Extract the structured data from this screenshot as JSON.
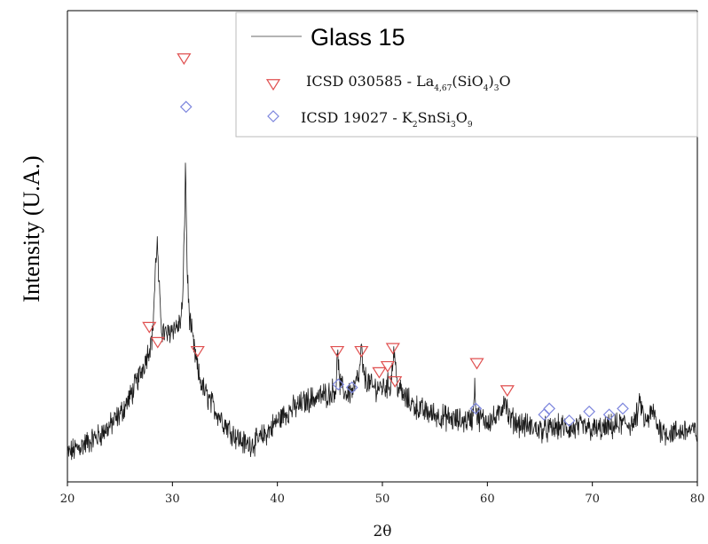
{
  "chart_data": {
    "type": "line",
    "title": "",
    "xlabel": "2θ",
    "ylabel": "Intensity (U.A.)",
    "xlim": [
      20,
      80
    ],
    "xticks": [
      20,
      30,
      40,
      50,
      60,
      70,
      80
    ],
    "yticks": [],
    "grid": false,
    "legend_position": "top-right",
    "colors": {
      "pattern": "#1a1a1a",
      "la_marker": "#e05050",
      "k_marker": "#7d86dd"
    },
    "series": [
      {
        "name": "Glass 15",
        "type": "line",
        "y_scale": "arbitrary (0 = baseline at bottom, 1 = strongest peak)",
        "points": [
          [
            20.0,
            0.04
          ],
          [
            21.0,
            0.06
          ],
          [
            22.0,
            0.08
          ],
          [
            23.0,
            0.1
          ],
          [
            24.0,
            0.13
          ],
          [
            25.0,
            0.17
          ],
          [
            26.0,
            0.23
          ],
          [
            27.0,
            0.31
          ],
          [
            27.7,
            0.38
          ],
          [
            28.1,
            0.43
          ],
          [
            28.4,
            0.66
          ],
          [
            28.55,
            0.75
          ],
          [
            28.7,
            0.6
          ],
          [
            29.0,
            0.45
          ],
          [
            29.5,
            0.43
          ],
          [
            30.0,
            0.46
          ],
          [
            30.5,
            0.46
          ],
          [
            30.8,
            0.48
          ],
          [
            31.0,
            0.56
          ],
          [
            31.1,
            0.72
          ],
          [
            31.25,
            1.0
          ],
          [
            31.4,
            0.66
          ],
          [
            31.6,
            0.5
          ],
          [
            32.0,
            0.4
          ],
          [
            32.5,
            0.3
          ],
          [
            33.0,
            0.25
          ],
          [
            34.0,
            0.19
          ],
          [
            35.0,
            0.14
          ],
          [
            36.0,
            0.1
          ],
          [
            37.0,
            0.07
          ],
          [
            38.0,
            0.08
          ],
          [
            39.0,
            0.11
          ],
          [
            40.0,
            0.15
          ],
          [
            41.0,
            0.18
          ],
          [
            42.0,
            0.2
          ],
          [
            43.0,
            0.22
          ],
          [
            44.0,
            0.23
          ],
          [
            45.0,
            0.24
          ],
          [
            45.6,
            0.26
          ],
          [
            45.75,
            0.4
          ],
          [
            45.9,
            0.27
          ],
          [
            46.5,
            0.24
          ],
          [
            47.2,
            0.25
          ],
          [
            47.8,
            0.3
          ],
          [
            48.0,
            0.39
          ],
          [
            48.2,
            0.3
          ],
          [
            49.0,
            0.26
          ],
          [
            50.0,
            0.26
          ],
          [
            50.8,
            0.27
          ],
          [
            51.1,
            0.39
          ],
          [
            51.4,
            0.27
          ],
          [
            52.0,
            0.23
          ],
          [
            53.0,
            0.2
          ],
          [
            54.0,
            0.18
          ],
          [
            55.0,
            0.17
          ],
          [
            56.0,
            0.16
          ],
          [
            57.0,
            0.15
          ],
          [
            58.0,
            0.15
          ],
          [
            58.6,
            0.16
          ],
          [
            58.8,
            0.27
          ],
          [
            59.0,
            0.16
          ],
          [
            60.0,
            0.15
          ],
          [
            61.0,
            0.16
          ],
          [
            61.7,
            0.23
          ],
          [
            62.0,
            0.16
          ],
          [
            63.0,
            0.14
          ],
          [
            64.0,
            0.13
          ],
          [
            65.0,
            0.12
          ],
          [
            66.0,
            0.12
          ],
          [
            67.0,
            0.13
          ],
          [
            68.0,
            0.12
          ],
          [
            69.0,
            0.13
          ],
          [
            70.0,
            0.12
          ],
          [
            71.0,
            0.12
          ],
          [
            72.0,
            0.13
          ],
          [
            73.0,
            0.14
          ],
          [
            74.0,
            0.14
          ],
          [
            74.6,
            0.21
          ],
          [
            75.0,
            0.14
          ],
          [
            75.8,
            0.18
          ],
          [
            76.2,
            0.13
          ],
          [
            77.0,
            0.11
          ],
          [
            78.0,
            0.11
          ],
          [
            79.0,
            0.12
          ],
          [
            80.0,
            0.11
          ]
        ]
      },
      {
        "name": "ICSD 030585 - La4,67(SiO4)3O",
        "type": "scatter",
        "marker": "triangle-down",
        "points": [
          [
            27.8,
            0.46
          ],
          [
            28.6,
            0.41
          ],
          [
            32.4,
            0.38
          ],
          [
            45.7,
            0.38
          ],
          [
            48.0,
            0.38
          ],
          [
            49.7,
            0.31
          ],
          [
            50.5,
            0.33
          ],
          [
            51.0,
            0.39
          ],
          [
            51.2,
            0.28
          ],
          [
            59.0,
            0.34
          ],
          [
            61.9,
            0.25
          ]
        ]
      },
      {
        "name": "ICSD 19027 - K2SnSi3O9",
        "type": "scatter",
        "marker": "diamond",
        "points": [
          [
            45.8,
            0.27
          ],
          [
            47.1,
            0.26
          ],
          [
            58.9,
            0.19
          ],
          [
            65.4,
            0.17
          ],
          [
            65.9,
            0.19
          ],
          [
            67.8,
            0.15
          ],
          [
            69.7,
            0.18
          ],
          [
            71.6,
            0.17
          ],
          [
            72.9,
            0.19
          ]
        ]
      }
    ]
  },
  "legend": {
    "glass_label": "Glass 15",
    "la_label_base": "ICSD 030585 - La",
    "la_sub1": "4,67",
    "la_mid": "(SiO",
    "la_sub2": "4",
    "la_end": ")",
    "la_sub3": "3",
    "la_tail": "O",
    "k_label_base": "ICSD 19027 - K",
    "k_sub1": "2",
    "k_mid": "SnSi",
    "k_sub2": "3",
    "k_mid2": "O",
    "k_sub3": "9"
  },
  "standalone_markers": [
    {
      "marker": "triangle-down",
      "x": 31.1,
      "y": 1.35
    },
    {
      "marker": "diamond",
      "x": 31.3,
      "y": 1.19
    }
  ]
}
